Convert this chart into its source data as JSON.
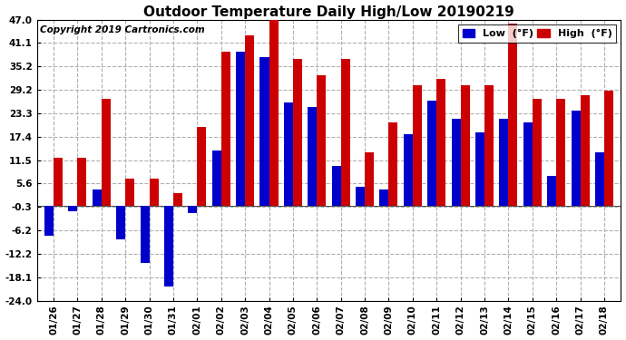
{
  "title": "Outdoor Temperature Daily High/Low 20190219",
  "copyright": "Copyright 2019 Cartronics.com",
  "legend_low": "Low  (°F)",
  "legend_high": "High  (°F)",
  "dates": [
    "01/26",
    "01/27",
    "01/28",
    "01/29",
    "01/30",
    "01/31",
    "02/01",
    "02/02",
    "02/03",
    "02/04",
    "02/05",
    "02/06",
    "02/07",
    "02/08",
    "02/09",
    "02/10",
    "02/11",
    "02/12",
    "02/13",
    "02/14",
    "02/15",
    "02/16",
    "02/17",
    "02/18"
  ],
  "high": [
    12.2,
    12.2,
    27.0,
    6.8,
    6.8,
    3.2,
    20.0,
    39.0,
    43.0,
    48.0,
    37.0,
    33.0,
    37.0,
    13.5,
    21.0,
    30.5,
    32.0,
    30.5,
    30.5,
    46.0,
    27.0,
    27.0,
    28.0,
    29.0
  ],
  "low": [
    -7.5,
    -1.5,
    4.0,
    -8.5,
    -14.5,
    -20.5,
    -1.8,
    14.0,
    39.0,
    37.5,
    26.0,
    25.0,
    10.0,
    4.8,
    4.2,
    18.0,
    26.5,
    22.0,
    18.5,
    22.0,
    21.0,
    7.5,
    24.0,
    13.5
  ],
  "ylim": [
    -24.0,
    47.0
  ],
  "yticks": [
    -24.0,
    -18.1,
    -12.2,
    -6.2,
    -0.3,
    5.6,
    11.5,
    17.4,
    23.3,
    29.2,
    35.2,
    41.1,
    47.0
  ],
  "bar_width": 0.38,
  "high_color": "#cc0000",
  "low_color": "#0000cc",
  "background_color": "#ffffff",
  "grid_color": "#b0b0b0",
  "title_fontsize": 11,
  "copyright_fontsize": 7.5,
  "tick_fontsize": 7.5,
  "legend_fontsize": 8
}
